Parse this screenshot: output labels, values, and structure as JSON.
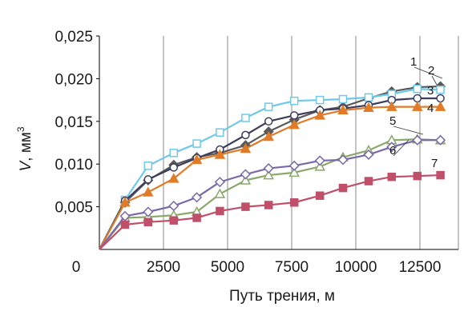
{
  "chart_data": {
    "type": "line",
    "title": "",
    "xlabel": "Путь трения, м",
    "ylabel_main": "V",
    "ylabel_unit": ", мм",
    "ylabel_sup": "3",
    "xlim": [
      0,
      14000
    ],
    "ylim": [
      0,
      0.025
    ],
    "x_ticks": [
      2500,
      5000,
      7500,
      10000,
      12500
    ],
    "x_tick_labels": [
      "2500",
      "5000",
      "7500",
      "10000",
      "12500"
    ],
    "y_ticks": [
      0.005,
      0.01,
      0.015,
      0.02,
      0.025
    ],
    "y_tick_labels": [
      "0,005",
      "0,010",
      "0,015",
      "0,020",
      "0,025"
    ],
    "origin_label": "0",
    "grid": "vertical",
    "legend": "none",
    "series": [
      {
        "label": "1",
        "color": "#5a5a5a",
        "marker": "diamond-filled",
        "x": [
          0,
          1000,
          1900,
          2900,
          3800,
          4700,
          5700,
          6600,
          7600,
          8600,
          9500,
          10500,
          11400,
          12400,
          13300
        ],
        "y": [
          0,
          0.0055,
          0.0081,
          0.0099,
          0.0108,
          0.0113,
          0.0122,
          0.0138,
          0.0152,
          0.0163,
          0.0167,
          0.0177,
          0.0185,
          0.019,
          0.0191
        ]
      },
      {
        "label": "2",
        "color": "#6fc9e8",
        "marker": "square-open",
        "x": [
          0,
          1000,
          1900,
          2900,
          3800,
          4700,
          5700,
          6600,
          7600,
          8600,
          9500,
          10500,
          11400,
          12400,
          13300
        ],
        "y": [
          0,
          0.0058,
          0.0098,
          0.0113,
          0.0124,
          0.0137,
          0.0154,
          0.0167,
          0.0174,
          0.0175,
          0.0176,
          0.0178,
          0.0182,
          0.0188,
          0.0187
        ]
      },
      {
        "label": "3",
        "color": "#3d3d5c",
        "marker": "circle-open",
        "x": [
          0,
          1000,
          1900,
          2900,
          3800,
          4700,
          5700,
          6600,
          7600,
          8600,
          9500,
          10500,
          11400,
          12400,
          13300
        ],
        "y": [
          0,
          0.0057,
          0.0082,
          0.0096,
          0.0107,
          0.0117,
          0.0134,
          0.015,
          0.0157,
          0.0163,
          0.0165,
          0.0169,
          0.0175,
          0.0177,
          0.0177
        ]
      },
      {
        "label": "4",
        "color": "#e07b28",
        "marker": "triangle-filled",
        "x": [
          0,
          1000,
          1900,
          2900,
          3800,
          4700,
          5700,
          6600,
          7600,
          8600,
          9500,
          10500,
          11400,
          12400,
          13300
        ],
        "y": [
          0,
          0.0055,
          0.0067,
          0.0083,
          0.0105,
          0.0111,
          0.0118,
          0.0132,
          0.0146,
          0.0157,
          0.0163,
          0.0166,
          0.0167,
          0.0167,
          0.0167
        ]
      },
      {
        "label": "5",
        "color": "#8aa86a",
        "marker": "triangle-open",
        "x": [
          0,
          1000,
          1900,
          2900,
          3800,
          4700,
          5700,
          6600,
          7600,
          8600,
          9500,
          10500,
          11400,
          12400,
          13300
        ],
        "y": [
          0,
          0.0037,
          0.0038,
          0.004,
          0.0044,
          0.0065,
          0.0081,
          0.0087,
          0.009,
          0.0097,
          0.0108,
          0.0116,
          0.0128,
          0.0129,
          0.0128
        ]
      },
      {
        "label": "6",
        "color": "#7a69a8",
        "marker": "diamond-open",
        "x": [
          0,
          1000,
          1900,
          2900,
          3800,
          4700,
          5700,
          6600,
          7600,
          8600,
          9500,
          10500,
          11400,
          12400,
          13300
        ],
        "y": [
          0,
          0.0039,
          0.0044,
          0.0051,
          0.0061,
          0.0079,
          0.0088,
          0.0095,
          0.0098,
          0.0104,
          0.0105,
          0.0111,
          0.012,
          0.0128,
          0.0128
        ]
      },
      {
        "label": "7",
        "color": "#c0506a",
        "marker": "square-filled",
        "x": [
          0,
          1000,
          1900,
          2900,
          3800,
          4700,
          5700,
          6600,
          7600,
          8600,
          9500,
          10500,
          11400,
          12400,
          13300
        ],
        "y": [
          0,
          0.0029,
          0.0032,
          0.0034,
          0.0037,
          0.0045,
          0.005,
          0.0052,
          0.0055,
          0.0063,
          0.0072,
          0.008,
          0.0085,
          0.0086,
          0.0087
        ]
      }
    ]
  }
}
